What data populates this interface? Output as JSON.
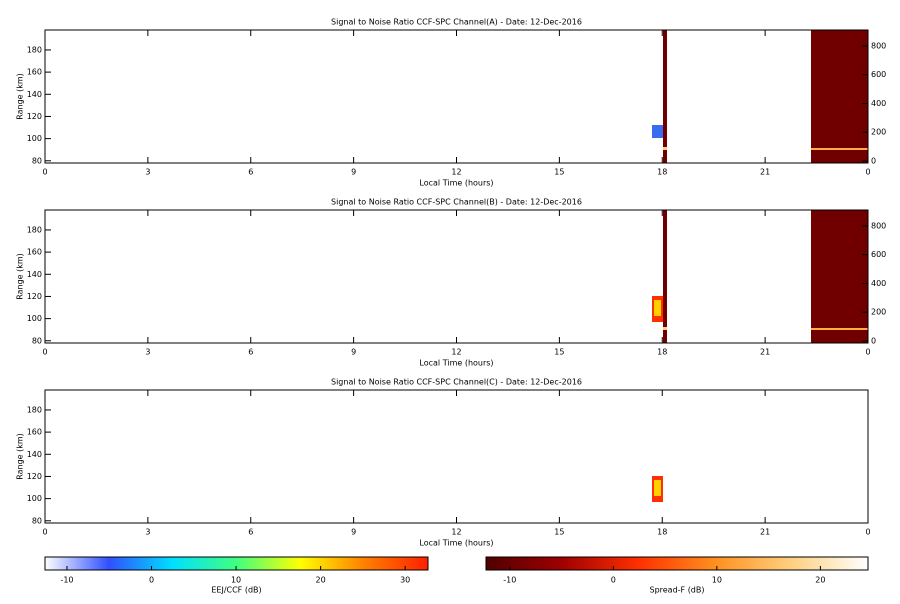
{
  "chart_data": [
    {
      "type": "heatmap",
      "title": "Signal to Noise Ratio CCF-SPC Channel(A) - Date: 12-Dec-2016",
      "x_label": "Local Time (hours)",
      "y_label": "Range (km)",
      "xlim": [
        0,
        24
      ],
      "xticks": [
        0,
        3,
        6,
        9,
        12,
        15,
        18,
        21,
        {
          "value": 24,
          "label": "0"
        }
      ],
      "ylim": [
        78,
        198
      ],
      "yticks": [
        80,
        100,
        120,
        140,
        160,
        180
      ],
      "y2lim": [
        -14,
        911
      ],
      "y2ticks": [
        0,
        200,
        400,
        600,
        800
      ]
    },
    {
      "type": "heatmap",
      "title": "Signal to Noise Ratio CCF-SPC Channel(B) - Date: 12-Dec-2016",
      "x_label": "Local Time (hours)",
      "y_label": "Range (km)",
      "xlim": [
        0,
        24
      ],
      "xticks": [
        0,
        3,
        6,
        9,
        12,
        15,
        18,
        21,
        {
          "value": 24,
          "label": "0"
        }
      ],
      "ylim": [
        78,
        198
      ],
      "yticks": [
        80,
        100,
        120,
        140,
        160,
        180
      ],
      "y2lim": [
        -14,
        911
      ],
      "y2ticks": [
        0,
        200,
        400,
        600,
        800
      ]
    },
    {
      "type": "heatmap",
      "title": "Signal to Noise Ratio CCF-SPC Channel(C) - Date: 12-Dec-2016",
      "x_label": "Local Time (hours)",
      "y_label": "Range (km)",
      "xlim": [
        0,
        24
      ],
      "xticks": [
        0,
        3,
        6,
        9,
        12,
        15,
        18,
        21,
        {
          "value": 24,
          "label": "0"
        }
      ],
      "ylim": [
        78,
        198
      ],
      "yticks": [
        80,
        100,
        120,
        140,
        160,
        180
      ]
    }
  ],
  "colorbars": [
    {
      "label": "EEJ/CCF (dB)",
      "xlim": [
        -12.6,
        32.7
      ],
      "xticks": [
        -10,
        0,
        10,
        20,
        30
      ],
      "colors": [
        "#ffffff",
        "#3050ff",
        "#00e0ff",
        "#40ff80",
        "#ffff00",
        "#ff8000",
        "#ff2000"
      ]
    },
    {
      "label": "Spread-F (dB)",
      "xlim": [
        -12.3,
        24.6
      ],
      "xticks": [
        -10,
        0,
        10,
        20
      ],
      "colors": [
        "#500000",
        "#a00000",
        "#ff3000",
        "#ff9020",
        "#ffd080",
        "#ffffff"
      ]
    }
  ]
}
